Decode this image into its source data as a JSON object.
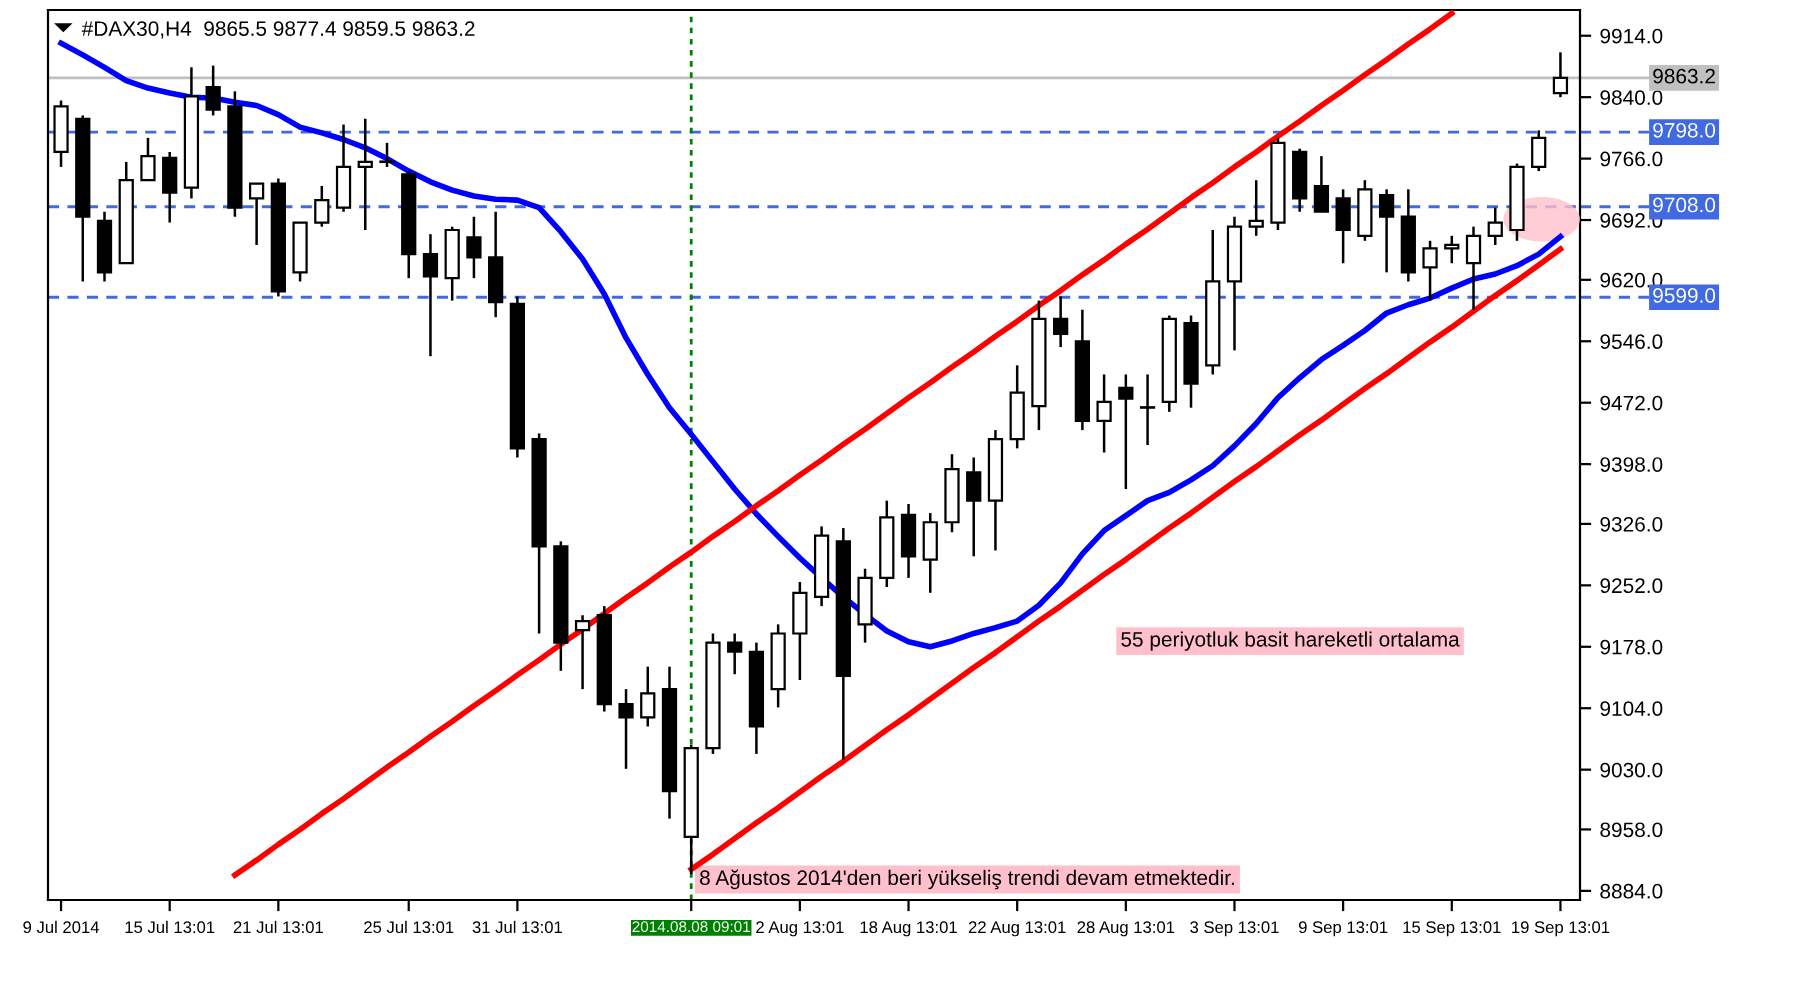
{
  "chart_data": {
    "type": "candlestick",
    "title": "#DAX30,H4  9865.5 9877.4 9859.5 9863.2",
    "color": "#000000",
    "categories": [
      "9 Jul 2014",
      null,
      null,
      null,
      null,
      "15 Jul 13:01",
      null,
      null,
      null,
      null,
      "21 Jul 13:01",
      null,
      null,
      null,
      null,
      null,
      "25 Jul 13:01",
      null,
      null,
      null,
      null,
      "31 Jul 13:01",
      null,
      null,
      null,
      null,
      null,
      null,
      null,
      "2014.08.08 09:01",
      null,
      null,
      null,
      null,
      "2 Aug 13:01",
      null,
      null,
      null,
      null,
      "18 Aug 13:01",
      null,
      null,
      null,
      null,
      "22 Aug 13:01",
      null,
      null,
      null,
      null,
      "28 Aug 13:01",
      null,
      null,
      null,
      null,
      "3 Sep 13:01",
      null,
      null,
      null,
      null,
      "9 Sep 13:01",
      null,
      null,
      null,
      null,
      "15 Sep 13:01",
      null,
      null,
      null,
      null,
      "19 Sep 13:01"
    ],
    "ohlc": [
      [
        9774,
        9836,
        9756,
        9829
      ],
      [
        9814,
        9818,
        9618,
        9696
      ],
      [
        9691,
        9702,
        9618,
        9629
      ],
      [
        9640,
        9762,
        9640,
        9740
      ],
      [
        9740,
        9791,
        9740,
        9769
      ],
      [
        9767,
        9774,
        9689,
        9725
      ],
      [
        9731,
        9876,
        9718,
        9841
      ],
      [
        9852,
        9878,
        9818,
        9825
      ],
      [
        9829,
        9847,
        9696,
        9707
      ],
      [
        9718,
        9736,
        9662,
        9736
      ],
      [
        9736,
        9742,
        9600,
        9606
      ],
      [
        9629,
        9689,
        9618,
        9689
      ],
      [
        9689,
        9733,
        9684,
        9716
      ],
      [
        9707,
        9807,
        9702,
        9756
      ],
      [
        9756,
        9814,
        9680,
        9762
      ],
      [
        9762,
        9785,
        9756,
        9762
      ],
      [
        9747,
        9751,
        9622,
        9651
      ],
      [
        9651,
        9675,
        9528,
        9624
      ],
      [
        9622,
        9684,
        9595,
        9680
      ],
      [
        9671,
        9696,
        9622,
        9647
      ],
      [
        9647,
        9702,
        9575,
        9593
      ],
      [
        9591,
        9600,
        9406,
        9417
      ],
      [
        9428,
        9435,
        9194,
        9299
      ],
      [
        9299,
        9305,
        9149,
        9183
      ],
      [
        9198,
        9216,
        9127,
        9209
      ],
      [
        9216,
        9227,
        9100,
        9109
      ],
      [
        9109,
        9127,
        9031,
        9093
      ],
      [
        9093,
        9154,
        9082,
        9122
      ],
      [
        9127,
        9154,
        8971,
        9004
      ],
      [
        8949,
        9060,
        8904,
        9056
      ],
      [
        9056,
        9194,
        9049,
        9183
      ],
      [
        9183,
        9194,
        9145,
        9172
      ],
      [
        9172,
        9183,
        9049,
        9082
      ],
      [
        9127,
        9205,
        9105,
        9194
      ],
      [
        9194,
        9256,
        9138,
        9243
      ],
      [
        9238,
        9323,
        9227,
        9312
      ],
      [
        9305,
        9321,
        9042,
        9143
      ],
      [
        9205,
        9272,
        9183,
        9261
      ],
      [
        9261,
        9354,
        9250,
        9334
      ],
      [
        9337,
        9350,
        9261,
        9287
      ],
      [
        9283,
        9339,
        9243,
        9328
      ],
      [
        9328,
        9410,
        9316,
        9392
      ],
      [
        9388,
        9406,
        9287,
        9354
      ],
      [
        9354,
        9439,
        9294,
        9428
      ],
      [
        9428,
        9517,
        9417,
        9484
      ],
      [
        9468,
        9595,
        9439,
        9573
      ],
      [
        9573,
        9600,
        9539,
        9555
      ],
      [
        9546,
        9584,
        9439,
        9450
      ],
      [
        9450,
        9506,
        9412,
        9473
      ],
      [
        9490,
        9506,
        9368,
        9477
      ],
      [
        9466,
        9506,
        9421,
        9466
      ],
      [
        9473,
        9577,
        9461,
        9573
      ],
      [
        9568,
        9577,
        9466,
        9495
      ],
      [
        9517,
        9680,
        9506,
        9618
      ],
      [
        9618,
        9696,
        9535,
        9684
      ],
      [
        9684,
        9740,
        9673,
        9691
      ],
      [
        9689,
        9791,
        9680,
        9785
      ],
      [
        9774,
        9778,
        9702,
        9718
      ],
      [
        9733,
        9769,
        9702,
        9702
      ],
      [
        9718,
        9729,
        9640,
        9680
      ],
      [
        9673,
        9740,
        9667,
        9729
      ],
      [
        9722,
        9729,
        9629,
        9696
      ],
      [
        9696,
        9729,
        9618,
        9629
      ],
      [
        9635,
        9667,
        9595,
        9658
      ],
      [
        9658,
        9673,
        9640,
        9662
      ],
      [
        9640,
        9684,
        9584,
        9673
      ],
      [
        9673,
        9707,
        9662,
        9689
      ],
      [
        9680,
        9760,
        9667,
        9756
      ],
      [
        9756,
        9800,
        9751,
        9791
      ],
      [
        9845,
        9894,
        9840,
        9863.2
      ]
    ],
    "series": [
      {
        "type": "line",
        "color": "#0000ff",
        "values": [
          9905,
          9891,
          9876,
          9860,
          9851,
          9845,
          9840,
          9839,
          9834,
          9830,
          9819,
          9804,
          9797,
          9789,
          9779,
          9766,
          9751,
          9738,
          9728,
          9721,
          9717,
          9716,
          9707,
          9678,
          9645,
          9603,
          9550,
          9506,
          9466,
          9434,
          9401,
          9368,
          9338,
          9311,
          9285,
          9261,
          9238,
          9217,
          9197,
          9184,
          9178,
          9185,
          9194,
          9201,
          9209,
          9228,
          9255,
          9290,
          9318,
          9336,
          9354,
          9364,
          9379,
          9396,
          9420,
          9447,
          9478,
          9502,
          9524,
          9541,
          9559,
          9580,
          9590,
          9598,
          9610,
          9621,
          9627,
          9637,
          9651,
          9672
        ]
      },
      {
        "type": "line",
        "color": "#ff0000",
        "values": [
          null,
          null,
          null,
          null,
          null,
          null,
          null,
          null,
          8903,
          8921,
          8940,
          8958,
          8977,
          8995,
          9014,
          9033,
          9051,
          9070,
          9088,
          9107,
          9125,
          9144,
          9162,
          9181,
          9199,
          9218,
          9237,
          9255,
          9274,
          9292,
          9311,
          9329,
          9348,
          9366,
          9385,
          9403,
          9422,
          9440,
          9459,
          9478,
          9496,
          9515,
          9533,
          9552,
          9570,
          9589,
          9607,
          9626,
          9644,
          9663,
          9681,
          9700,
          9719,
          9737,
          9756,
          9774,
          9793,
          9811,
          9830,
          9848,
          9867,
          9885,
          9904,
          9922,
          9941,
          null,
          null,
          null,
          null,
          null
        ]
      },
      {
        "type": "line",
        "color": "#ff0000",
        "values": [
          null,
          null,
          null,
          null,
          null,
          null,
          null,
          null,
          null,
          null,
          null,
          null,
          null,
          null,
          null,
          null,
          null,
          null,
          null,
          null,
          null,
          null,
          null,
          null,
          null,
          null,
          null,
          null,
          null,
          8910,
          8928,
          8947,
          8966,
          8984,
          9003,
          9022,
          9040,
          9059,
          9078,
          9096,
          9115,
          9134,
          9153,
          9171,
          9190,
          9209,
          9227,
          9246,
          9265,
          9283,
          9302,
          9321,
          9339,
          9358,
          9377,
          9395,
          9414,
          9433,
          9451,
          9470,
          9489,
          9507,
          9526,
          9545,
          9563,
          9582,
          9601,
          9619,
          9638,
          9657
        ]
      }
    ],
    "ylim": [
      8873,
      9945
    ],
    "yticks": [
      {
        "value": 8884,
        "label": "8884.0"
      },
      {
        "value": 8958,
        "label": "8958.0"
      },
      {
        "value": 9030,
        "label": "9030.0"
      },
      {
        "value": 9104,
        "label": "9104.0"
      },
      {
        "value": 9178,
        "label": "9178.0"
      },
      {
        "value": 9252,
        "label": "9252.0"
      },
      {
        "value": 9326,
        "label": "9326.0"
      },
      {
        "value": 9398,
        "label": "9398.0"
      },
      {
        "value": 9472,
        "label": "9472.0"
      },
      {
        "value": 9546,
        "label": "9546.0"
      },
      {
        "value": 9620,
        "label": "9620.0"
      },
      {
        "value": 9692,
        "label": "9692.0"
      },
      {
        "value": 9766,
        "label": "9766.0"
      },
      {
        "value": 9840,
        "label": "9840.0"
      },
      {
        "value": 9914,
        "label": "9914.0"
      }
    ],
    "ref_lines": [
      {
        "axis": "y",
        "value": 9863.2,
        "label": "9863.2",
        "color": "#c0c0c0",
        "line_style": "solid"
      },
      {
        "axis": "y",
        "value": 9798.0,
        "label": "9798.0",
        "color": "#4169e1",
        "line_style": "dashed"
      },
      {
        "axis": "y",
        "value": 9708.0,
        "label": "9708.0",
        "color": "#4169e1",
        "line_style": "dashed"
      },
      {
        "axis": "y",
        "value": 9599.0,
        "label": "9599.0",
        "color": "#4169e1",
        "line_style": "dashed"
      },
      {
        "axis": "x",
        "value": "2014.08.08 09:01",
        "color": "#008000",
        "line_style": "dotted"
      }
    ],
    "annotations": [
      "55 periyotluk basit hareketli ortalama",
      "8 Ağustos 2014'den beri yükseliş trendi devam etmektedir."
    ],
    "grid": false,
    "legend": false
  }
}
